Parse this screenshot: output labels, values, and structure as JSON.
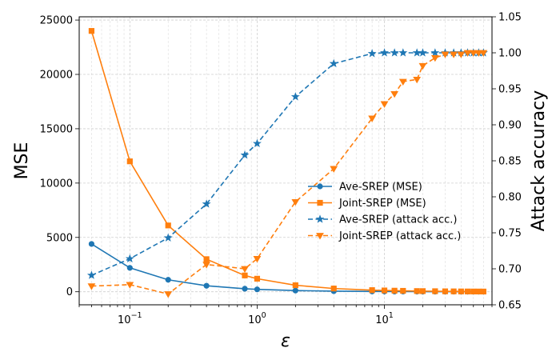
{
  "chart_data": {
    "type": "line",
    "title": "",
    "xlabel": "ε",
    "ylabel_left": "MSE",
    "ylabel_right": "Attack accuracy",
    "xscale": "log",
    "xlim": [
      0.04,
      70
    ],
    "x_major_ticks": [
      0.1,
      1,
      10
    ],
    "x_tick_labels": [
      {
        "base": "10",
        "exp": "−1"
      },
      {
        "base": "10",
        "exp": "0"
      },
      {
        "base": "10",
        "exp": "1"
      }
    ],
    "ylim_left": [
      -1200,
      25300
    ],
    "yticks_left": [
      0,
      5000,
      10000,
      15000,
      20000,
      25000
    ],
    "ylim_right": [
      0.65,
      1.05
    ],
    "yticks_right": [
      0.65,
      0.7,
      0.75,
      0.8,
      0.85,
      0.9,
      0.95,
      1.0,
      1.05
    ],
    "grid": true,
    "legend_position": "center-right",
    "series": [
      {
        "name": "Ave-SREP (MSE)",
        "axis": "left",
        "color": "#1f77b4",
        "linestyle": "solid",
        "marker": "circle",
        "x": [
          0.05,
          0.1,
          0.2,
          0.4,
          0.8,
          1,
          2,
          4,
          8,
          10,
          12,
          14,
          18,
          20,
          25,
          30,
          35,
          40,
          45,
          50,
          55,
          60
        ],
        "y": [
          4400,
          2200,
          1100,
          550,
          280,
          220,
          110,
          55,
          30,
          25,
          20,
          18,
          15,
          13,
          11,
          10,
          9,
          8,
          7,
          6,
          6,
          5
        ]
      },
      {
        "name": "Joint-SREP (MSE)",
        "axis": "left",
        "color": "#ff7f0e",
        "linestyle": "solid",
        "marker": "square",
        "x": [
          0.05,
          0.1,
          0.2,
          0.4,
          0.8,
          1,
          2,
          4,
          8,
          10,
          12,
          14,
          18,
          20,
          25,
          30,
          35,
          40,
          45,
          50,
          55,
          60
        ],
        "y": [
          24000,
          12000,
          6100,
          3000,
          1500,
          1200,
          600,
          300,
          150,
          120,
          100,
          85,
          65,
          60,
          50,
          40,
          35,
          30,
          27,
          24,
          22,
          20
        ]
      },
      {
        "name": "Ave-SREP (attack acc.)",
        "axis": "right",
        "color": "#1f77b4",
        "linestyle": "dashed",
        "marker": "star",
        "x": [
          0.05,
          0.1,
          0.2,
          0.4,
          0.8,
          1,
          2,
          4,
          8,
          10,
          12,
          14,
          18,
          20,
          25,
          30,
          35,
          40,
          45,
          50,
          55,
          60
        ],
        "y": [
          0.691,
          0.714,
          0.743,
          0.79,
          0.858,
          0.874,
          0.939,
          0.985,
          0.999,
          1.0,
          1.0,
          1.0,
          1.0,
          1.0,
          1.0,
          1.0,
          1.0,
          1.0,
          1.0,
          1.0,
          1.0,
          1.0
        ]
      },
      {
        "name": "Joint-SREP (attack acc.)",
        "axis": "right",
        "color": "#ff7f0e",
        "linestyle": "dashed",
        "marker": "triangle-down",
        "x": [
          0.05,
          0.1,
          0.2,
          0.4,
          0.8,
          1,
          2,
          4,
          8,
          10,
          12,
          14,
          18,
          20,
          25,
          30,
          35,
          40,
          45,
          50,
          55,
          60
        ],
        "y": [
          0.676,
          0.678,
          0.665,
          0.706,
          0.7,
          0.714,
          0.793,
          0.839,
          0.909,
          0.929,
          0.943,
          0.96,
          0.963,
          0.982,
          0.993,
          0.998,
          0.998,
          0.998,
          1.0,
          1.0,
          1.0,
          1.0
        ]
      }
    ]
  }
}
